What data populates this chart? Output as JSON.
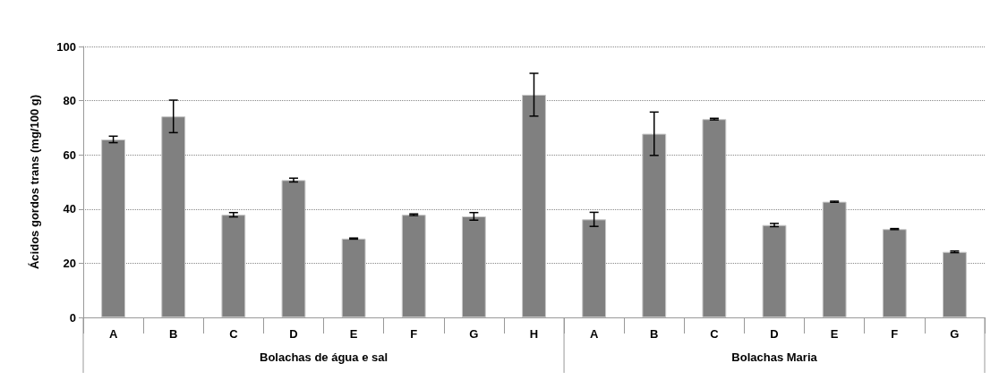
{
  "chart_data": {
    "type": "bar",
    "ylabel": "Ácidos gordos trans (mg/100 g)",
    "categories": [
      "A",
      "B",
      "C",
      "D",
      "E",
      "F",
      "G",
      "H",
      "A",
      "B",
      "C",
      "D",
      "E",
      "F",
      "G"
    ],
    "values": [
      65.7,
      74.2,
      37.9,
      50.7,
      29.1,
      37.9,
      37.3,
      82.2,
      36.2,
      67.8,
      73.2,
      34.1,
      42.7,
      32.6,
      24.2
    ],
    "errors": [
      1.2,
      6,
      0.8,
      0.7,
      0.2,
      0.3,
      1.4,
      7.9,
      2.6,
      8,
      0.3,
      0.6,
      0.2,
      0.2,
      0.3
    ],
    "color": "#808080",
    "ylim": [
      0,
      100
    ],
    "yticks": [
      0,
      20,
      40,
      60,
      80,
      100
    ],
    "grid": "y",
    "annotations": [
      "Bolachas de água e sal",
      "Bolachas Maria"
    ]
  }
}
